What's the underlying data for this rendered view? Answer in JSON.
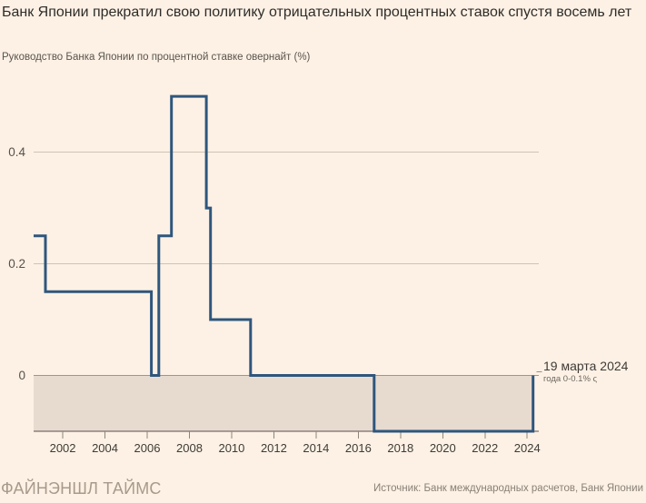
{
  "chart_data": {
    "type": "line",
    "step": "after",
    "title": "Банк Японии прекратил свою политику отрицательных процентных ставок спустя восемь лет",
    "subtitle": "Руководство Банка Японии по процентной ставке овернайт (%)",
    "series": [
      {
        "points": [
          [
            2000.62,
            0.25
          ],
          [
            2001.18,
            0.15
          ],
          [
            2006.2,
            0.0
          ],
          [
            2006.55,
            0.25
          ],
          [
            2007.15,
            0.5
          ],
          [
            2008.8,
            0.3
          ],
          [
            2009.0,
            0.1
          ],
          [
            2010.9,
            0.0
          ],
          [
            2016.75,
            -0.1
          ],
          [
            2024.28,
            0.0
          ]
        ]
      }
    ],
    "x_ticks": [
      2002,
      2004,
      2006,
      2008,
      2010,
      2012,
      2014,
      2016,
      2018,
      2020,
      2022,
      2024
    ],
    "y_ticks": [
      "0",
      "0.2",
      "0.4"
    ],
    "y_tick_values": [
      0,
      0.2,
      0.4
    ],
    "xlim": [
      2000.62,
      2024.55
    ],
    "ylim": [
      -0.1,
      0.523
    ],
    "grid": "horizontal",
    "legend": "none",
    "negative_band_below": 0,
    "annotations": [
      {
        "year": 2024.28,
        "value": 0,
        "line1": "19 марта 2024",
        "line2": "года 0-0.1% ς"
      }
    ],
    "colors": {
      "line": "#2f567d",
      "negative_band": "#e7dbd0",
      "gridline": "#cfc3b6",
      "zero_line": "#a09585",
      "axis": "#57514b",
      "tick": "#8f8579",
      "x_label": "#3f3b35",
      "y_label": "#57514b",
      "annotation_tick": "#9a9086"
    }
  },
  "footer": {
    "brand": "ФАЙНЭНШЛ ТАЙМС",
    "source": "Источник: Банк международных расчетов, Банк Японии"
  }
}
